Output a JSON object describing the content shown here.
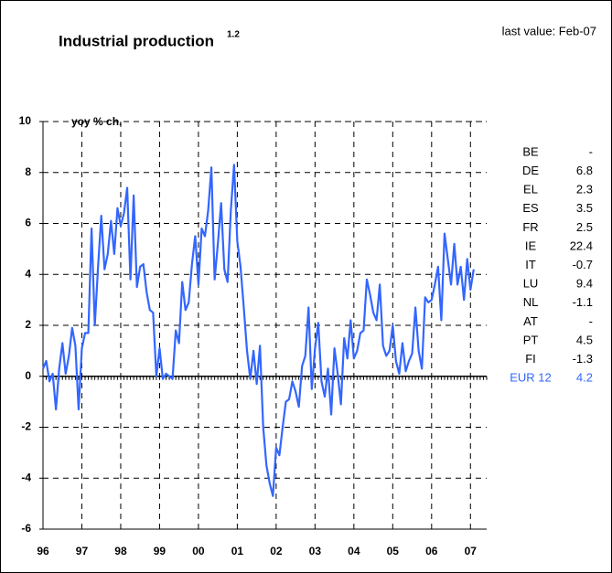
{
  "chart_data": {
    "type": "line",
    "title": "Industrial production",
    "title_superscript": "1.2",
    "annotation": "last value: Feb-07",
    "ylabel": "yoy % ch.",
    "categories": [
      "96",
      null,
      null,
      null,
      null,
      null,
      null,
      null,
      null,
      null,
      null,
      null,
      "97",
      null,
      null,
      null,
      null,
      null,
      null,
      null,
      null,
      null,
      null,
      null,
      "98",
      null,
      null,
      null,
      null,
      null,
      null,
      null,
      null,
      null,
      null,
      null,
      "99",
      null,
      null,
      null,
      null,
      null,
      null,
      null,
      null,
      null,
      null,
      null,
      "00",
      null,
      null,
      null,
      null,
      null,
      null,
      null,
      null,
      null,
      null,
      null,
      "01",
      null,
      null,
      null,
      null,
      null,
      null,
      null,
      null,
      null,
      null,
      null,
      "02",
      null,
      null,
      null,
      null,
      null,
      null,
      null,
      null,
      null,
      null,
      null,
      "03",
      null,
      null,
      null,
      null,
      null,
      null,
      null,
      null,
      null,
      null,
      null,
      "04",
      null,
      null,
      null,
      null,
      null,
      null,
      null,
      null,
      null,
      null,
      null,
      "05",
      null,
      null,
      null,
      null,
      null,
      null,
      null,
      null,
      null,
      null,
      null,
      "06",
      null,
      null,
      null,
      null,
      null,
      null,
      null,
      null,
      null,
      null,
      null,
      "07",
      null
    ],
    "series": [
      {
        "color": "#3366ff",
        "values": [
          0.3,
          0.6,
          -0.2,
          0.1,
          -1.3,
          0.3,
          1.3,
          0.1,
          0.8,
          1.9,
          1.2,
          -1.3,
          1.1,
          1.7,
          1.7,
          5.8,
          2.0,
          4.3,
          6.3,
          4.2,
          4.8,
          6.1,
          4.8,
          6.6,
          5.9,
          6.4,
          7.4,
          3.8,
          7.1,
          3.5,
          4.3,
          4.4,
          3.3,
          2.6,
          2.5,
          0.0,
          1.1,
          -0.1,
          0.1,
          0.0,
          -0.1,
          1.8,
          1.3,
          3.7,
          2.6,
          2.9,
          4.4,
          5.5,
          3.6,
          5.8,
          5.5,
          6.5,
          8.2,
          3.8,
          5.2,
          6.8,
          4.2,
          3.7,
          6.5,
          8.3,
          5.3,
          4.3,
          2.7,
          1.0,
          -0.1,
          1.0,
          -0.3,
          1.2,
          -2.0,
          -3.5,
          -4.2,
          -4.7,
          -2.8,
          -3.1,
          -2.0,
          -1.0,
          -0.9,
          -0.2,
          -0.6,
          -1.2,
          0.4,
          0.8,
          2.7,
          -0.5,
          1.1,
          2.1,
          -0.2,
          -0.8,
          0.3,
          -1.5,
          1.1,
          0.1,
          -1.1,
          1.5,
          0.7,
          2.2,
          0.7,
          1.0,
          1.7,
          1.8,
          3.8,
          3.2,
          2.5,
          2.2,
          3.6,
          1.2,
          0.8,
          1.0,
          2.0,
          0.6,
          0.1,
          1.3,
          0.2,
          0.6,
          0.9,
          2.7,
          1.0,
          0.3,
          3.1,
          2.9,
          3.0,
          3.6,
          4.3,
          2.2,
          5.6,
          4.6,
          3.6,
          5.2,
          3.6,
          4.3,
          3.0,
          4.6,
          3.4,
          4.2
        ]
      }
    ],
    "ylim": [
      -6,
      10
    ],
    "yticks": [
      -6,
      -4,
      -2,
      0,
      2,
      4,
      6,
      8,
      10
    ],
    "grid": true
  },
  "table": {
    "rows": [
      {
        "label": "BE",
        "value": "-"
      },
      {
        "label": "DE",
        "value": 6.8
      },
      {
        "label": "EL",
        "value": 2.3
      },
      {
        "label": "ES",
        "value": 3.5
      },
      {
        "label": "FR",
        "value": 2.5
      },
      {
        "label": "IE",
        "value": 22.4
      },
      {
        "label": "IT",
        "value": -0.7
      },
      {
        "label": "LU",
        "value": 9.4
      },
      {
        "label": "NL",
        "value": -1.1
      },
      {
        "label": "AT",
        "value": "-"
      },
      {
        "label": "PT",
        "value": 4.5
      },
      {
        "label": "FI",
        "value": -1.3
      },
      {
        "label": "EUR 12",
        "value": 4.2,
        "color": "#3366ff"
      }
    ]
  }
}
